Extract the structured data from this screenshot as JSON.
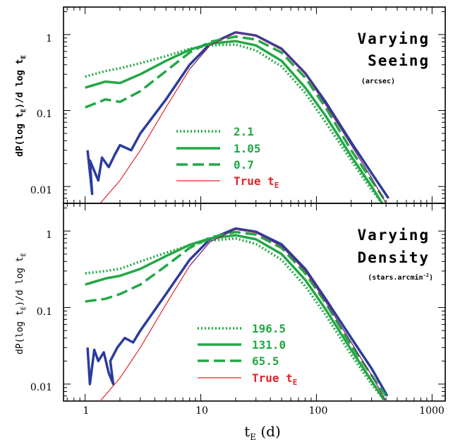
{
  "colors": {
    "green": "#22a845",
    "blue": "#2b3c9c",
    "red": "#e0252a",
    "purple": "#7a2e7a"
  },
  "chart_data": [
    {
      "type": "line",
      "panel": "top",
      "title_lines": [
        "Varying",
        "Seeing"
      ],
      "units": "(arcsec)",
      "ylabel": "dP(log t",
      "ylabel_sub": "E",
      "ylabel_tail": ")/d log t",
      "ylabel_sub2": "E",
      "xscale": "log",
      "yscale": "log",
      "xlim": [
        0.65,
        1300
      ],
      "ylim": [
        0.006,
        2.3
      ],
      "yticklabels": [
        "1",
        "0.1",
        "0.01"
      ],
      "legend_placement": "lower-center",
      "series": [
        {
          "name": "2.1",
          "style": "dotted",
          "color": "green",
          "x": [
            1.0,
            1.5,
            2,
            3,
            5,
            8,
            12,
            20,
            30,
            50,
            80,
            120,
            200,
            300,
            370
          ],
          "y": [
            0.28,
            0.33,
            0.36,
            0.42,
            0.52,
            0.65,
            0.72,
            0.74,
            0.62,
            0.38,
            0.17,
            0.07,
            0.022,
            0.009,
            0.006
          ]
        },
        {
          "name": "1.05",
          "style": "solid",
          "color": "green",
          "x": [
            1.0,
            1.5,
            2,
            3,
            5,
            8,
            12,
            20,
            30,
            50,
            80,
            120,
            200,
            300,
            370
          ],
          "y": [
            0.2,
            0.24,
            0.23,
            0.3,
            0.45,
            0.63,
            0.76,
            0.82,
            0.72,
            0.45,
            0.2,
            0.085,
            0.025,
            0.01,
            0.006
          ]
        },
        {
          "name": "0.7",
          "style": "dashed",
          "color": "green",
          "x": [
            1.0,
            1.5,
            2,
            3,
            5,
            8,
            12,
            20,
            30,
            50,
            80,
            120,
            200,
            300,
            380
          ],
          "y": [
            0.11,
            0.14,
            0.13,
            0.18,
            0.33,
            0.58,
            0.8,
            0.94,
            0.86,
            0.58,
            0.27,
            0.11,
            0.03,
            0.012,
            0.007
          ]
        },
        {
          "name": "True t",
          "name_sub": "E",
          "style": "solid-thin",
          "color": "red",
          "x": [
            1.35,
            2,
            3,
            5,
            8,
            12,
            20,
            30,
            50,
            80,
            120,
            200,
            300,
            400
          ],
          "y": [
            0.006,
            0.012,
            0.03,
            0.11,
            0.35,
            0.72,
            1.05,
            0.95,
            0.63,
            0.3,
            0.12,
            0.035,
            0.013,
            0.006
          ]
        }
      ],
      "extra_series": [
        {
          "style": "solid",
          "color": "blue",
          "x": [
            1.05,
            1.15,
            1.1,
            1.3,
            1.4,
            1.6,
            1.8,
            2.0,
            2.5,
            3,
            5,
            8,
            12,
            20,
            30,
            50,
            80,
            120,
            200,
            300,
            420
          ],
          "y": [
            0.03,
            0.008,
            0.022,
            0.012,
            0.024,
            0.018,
            0.026,
            0.035,
            0.03,
            0.05,
            0.14,
            0.4,
            0.75,
            1.07,
            0.97,
            0.65,
            0.31,
            0.13,
            0.038,
            0.015,
            0.007
          ]
        }
      ]
    },
    {
      "type": "line",
      "panel": "bottom",
      "title_lines": [
        "Varying",
        "Density"
      ],
      "units": "(stars.arcmin",
      "units_sup": "-2",
      "units_tail": ")",
      "ylabel": "dP(log t",
      "ylabel_sub": "E",
      "ylabel_tail": ")/d log t",
      "ylabel_sub2": "E",
      "xlabel": "t",
      "xlabel_sub": "E",
      "xlabel_tail": " (d)",
      "xscale": "log",
      "yscale": "log",
      "xlim": [
        0.65,
        1300
      ],
      "ylim": [
        0.006,
        2.3
      ],
      "xticklabels": [
        "1",
        "10",
        "100",
        "1000"
      ],
      "yticklabels": [
        "1",
        "0.1",
        "0.01"
      ],
      "legend_placement": "lower-center",
      "series": [
        {
          "name": "196.5",
          "style": "dotted",
          "color": "green",
          "x": [
            1.0,
            1.5,
            2,
            3,
            5,
            8,
            12,
            20,
            30,
            50,
            80,
            120,
            200,
            300,
            390
          ],
          "y": [
            0.28,
            0.3,
            0.32,
            0.4,
            0.52,
            0.65,
            0.75,
            0.8,
            0.68,
            0.42,
            0.19,
            0.08,
            0.024,
            0.01,
            0.006
          ]
        },
        {
          "name": "131.0",
          "style": "solid",
          "color": "green",
          "x": [
            1.0,
            1.5,
            2,
            3,
            5,
            8,
            12,
            20,
            30,
            50,
            80,
            120,
            200,
            300,
            390
          ],
          "y": [
            0.2,
            0.24,
            0.26,
            0.32,
            0.47,
            0.66,
            0.8,
            0.88,
            0.78,
            0.5,
            0.23,
            0.095,
            0.028,
            0.011,
            0.006
          ]
        },
        {
          "name": "65.5",
          "style": "dashed",
          "color": "green",
          "x": [
            1.0,
            1.5,
            2,
            3,
            5,
            8,
            12,
            20,
            30,
            50,
            80,
            120,
            200,
            300,
            400
          ],
          "y": [
            0.12,
            0.13,
            0.15,
            0.2,
            0.35,
            0.6,
            0.82,
            0.97,
            0.9,
            0.6,
            0.28,
            0.115,
            0.032,
            0.013,
            0.007
          ]
        },
        {
          "name": "True t",
          "name_sub": "E",
          "style": "solid-thin",
          "color": "red",
          "x": [
            1.35,
            2,
            3,
            5,
            8,
            12,
            20,
            30,
            50,
            80,
            120,
            200,
            300,
            400
          ],
          "y": [
            0.006,
            0.012,
            0.03,
            0.11,
            0.35,
            0.72,
            1.05,
            0.95,
            0.63,
            0.3,
            0.12,
            0.035,
            0.013,
            0.006
          ]
        }
      ],
      "extra_series": [
        {
          "style": "solid",
          "color": "blue",
          "x": [
            1.05,
            1.1,
            1.2,
            1.3,
            1.45,
            1.6,
            1.75,
            1.65,
            1.9,
            2.2,
            2.6,
            3,
            5,
            8,
            12,
            20,
            30,
            50,
            80,
            120,
            200,
            300,
            410
          ],
          "y": [
            0.03,
            0.01,
            0.028,
            0.02,
            0.026,
            0.014,
            0.01,
            0.02,
            0.03,
            0.04,
            0.035,
            0.05,
            0.15,
            0.42,
            0.78,
            1.08,
            0.98,
            0.67,
            0.32,
            0.13,
            0.04,
            0.016,
            0.007
          ]
        }
      ]
    }
  ]
}
